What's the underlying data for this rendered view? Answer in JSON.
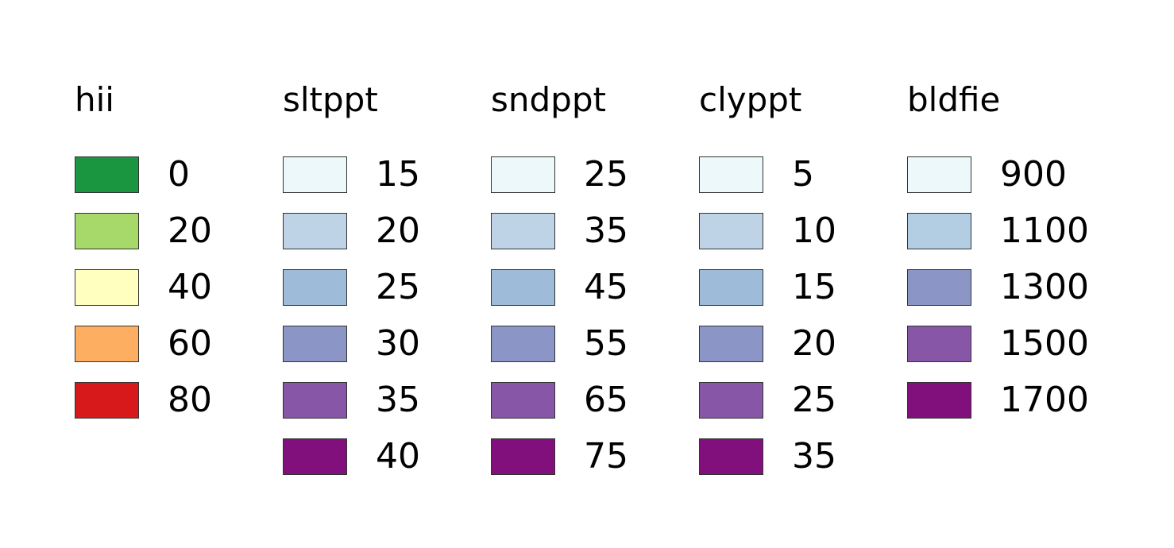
{
  "legends": [
    {
      "title": "hii",
      "items": [
        {
          "label": "0",
          "color": "#1a9641"
        },
        {
          "label": "20",
          "color": "#a6d96a"
        },
        {
          "label": "40",
          "color": "#ffffc0"
        },
        {
          "label": "60",
          "color": "#fdae61"
        },
        {
          "label": "80",
          "color": "#d7191c"
        }
      ]
    },
    {
      "title": "sltppt",
      "items": [
        {
          "label": "15",
          "color": "#edf8fb"
        },
        {
          "label": "20",
          "color": "#bfd3e6"
        },
        {
          "label": "25",
          "color": "#9ebcda"
        },
        {
          "label": "30",
          "color": "#8c96c6"
        },
        {
          "label": "35",
          "color": "#8856a7"
        },
        {
          "label": "40",
          "color": "#810f7c"
        }
      ]
    },
    {
      "title": "sndppt",
      "items": [
        {
          "label": "25",
          "color": "#edf8fb"
        },
        {
          "label": "35",
          "color": "#bfd3e6"
        },
        {
          "label": "45",
          "color": "#9ebcda"
        },
        {
          "label": "55",
          "color": "#8c96c6"
        },
        {
          "label": "65",
          "color": "#8856a7"
        },
        {
          "label": "75",
          "color": "#810f7c"
        }
      ]
    },
    {
      "title": "clyppt",
      "items": [
        {
          "label": "5",
          "color": "#edf8fb"
        },
        {
          "label": "10",
          "color": "#bfd3e6"
        },
        {
          "label": "15",
          "color": "#9ebcda"
        },
        {
          "label": "20",
          "color": "#8c96c6"
        },
        {
          "label": "25",
          "color": "#8856a7"
        },
        {
          "label": "35",
          "color": "#810f7c"
        }
      ]
    },
    {
      "title": "bldfie",
      "items": [
        {
          "label": "900",
          "color": "#edf8fb"
        },
        {
          "label": "1100",
          "color": "#b3cde3"
        },
        {
          "label": "1300",
          "color": "#8c96c6"
        },
        {
          "label": "1500",
          "color": "#8856a7"
        },
        {
          "label": "1700",
          "color": "#810f7c"
        }
      ]
    }
  ]
}
